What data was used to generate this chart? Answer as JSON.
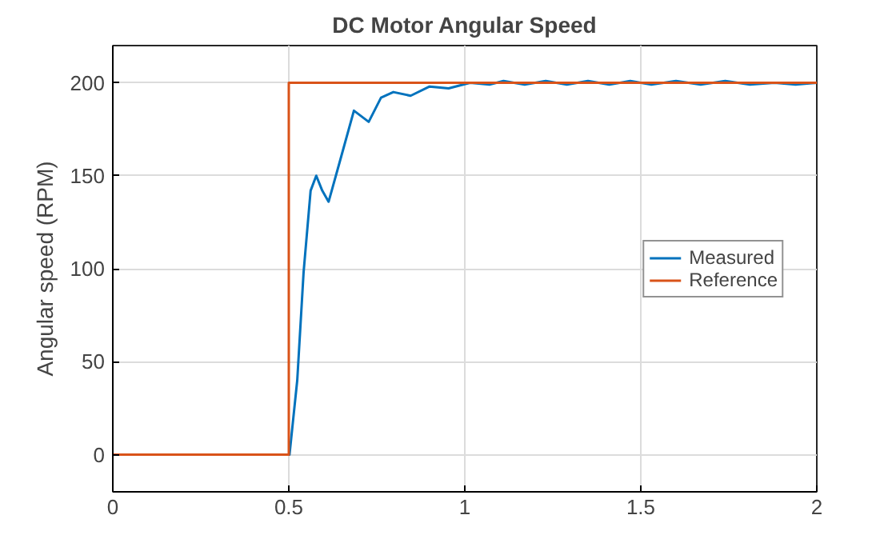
{
  "chart_data": {
    "type": "line",
    "title": "DC Motor Angular Speed",
    "ylabel": "Angular speed (RPM)",
    "xlim": [
      0,
      2
    ],
    "ylim": [
      -20,
      220
    ],
    "xticks": [
      0,
      0.5,
      1,
      1.5,
      2
    ],
    "yticks": [
      0,
      50,
      100,
      150,
      200
    ],
    "grid": true,
    "legend": "right",
    "marker": "none",
    "line_style": "solid",
    "series": [
      {
        "name": "Measured",
        "color": "#0072bd",
        "x": [
          0,
          0.5,
          0.502,
          0.524,
          0.542,
          0.562,
          0.578,
          0.595,
          0.613,
          0.644,
          0.685,
          0.727,
          0.762,
          0.797,
          0.846,
          0.9,
          0.954,
          1.015,
          1.07,
          1.11,
          1.17,
          1.23,
          1.29,
          1.35,
          1.41,
          1.47,
          1.53,
          1.6,
          1.67,
          1.74,
          1.81,
          1.88,
          1.94,
          2
        ],
        "values": [
          0,
          0,
          0,
          40,
          98,
          142,
          150,
          142,
          136,
          157,
          185,
          179,
          192,
          195,
          193,
          198,
          197,
          200,
          199,
          201,
          199,
          201,
          199,
          201,
          199,
          201,
          199,
          201,
          199,
          201,
          199,
          200,
          199,
          200
        ]
      },
      {
        "name": "Reference",
        "color": "#d95319",
        "x": [
          0,
          0.5,
          0.5,
          2
        ],
        "values": [
          0,
          0,
          200,
          200
        ]
      }
    ]
  }
}
